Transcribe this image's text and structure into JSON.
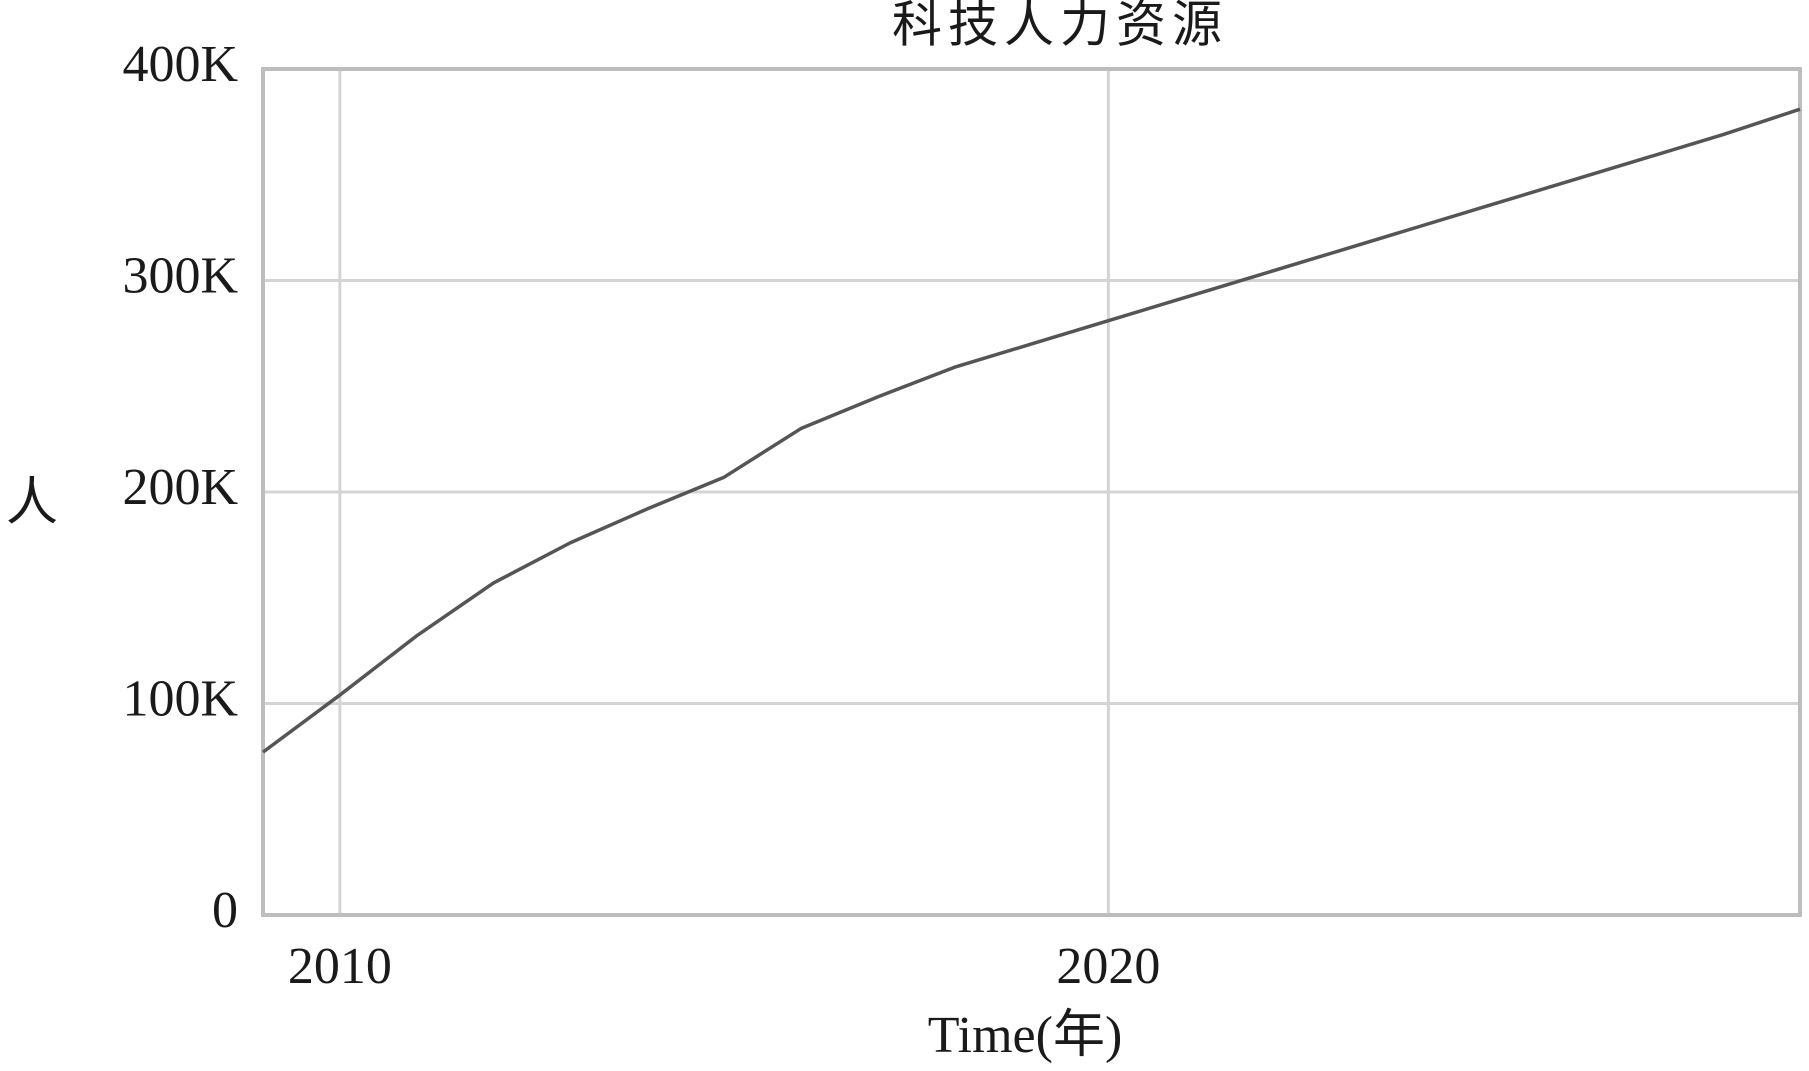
{
  "chart_data": {
    "type": "line",
    "title": "科技人力资源",
    "x_label": "Time(年)",
    "y_label": "人",
    "x": [
      2009,
      2010,
      2011,
      2012,
      2013,
      2014,
      2015,
      2016,
      2017,
      2018,
      2019,
      2020,
      2021,
      2022,
      2023,
      2024,
      2025,
      2026,
      2027,
      2028,
      2029
    ],
    "series": [
      {
        "name": "科技人力资源",
        "color": "#555555",
        "values": [
          77000,
          104000,
          132000,
          157000,
          176000,
          192000,
          207000,
          230000,
          245000,
          259000,
          270000,
          281000,
          292000,
          303000,
          314000,
          325000,
          336000,
          347000,
          358000,
          369000,
          381000
        ]
      }
    ],
    "xlim": [
      2009,
      2029
    ],
    "xticks": [
      2010,
      2020
    ],
    "ylim": [
      0,
      400000
    ],
    "yticks": [
      0,
      {
        "value": 100000,
        "label": "100K"
      },
      {
        "value": 200000,
        "label": "200K"
      },
      {
        "value": 300000,
        "label": "300K"
      },
      {
        "value": 400000,
        "label": "400K"
      }
    ],
    "grid": true
  }
}
